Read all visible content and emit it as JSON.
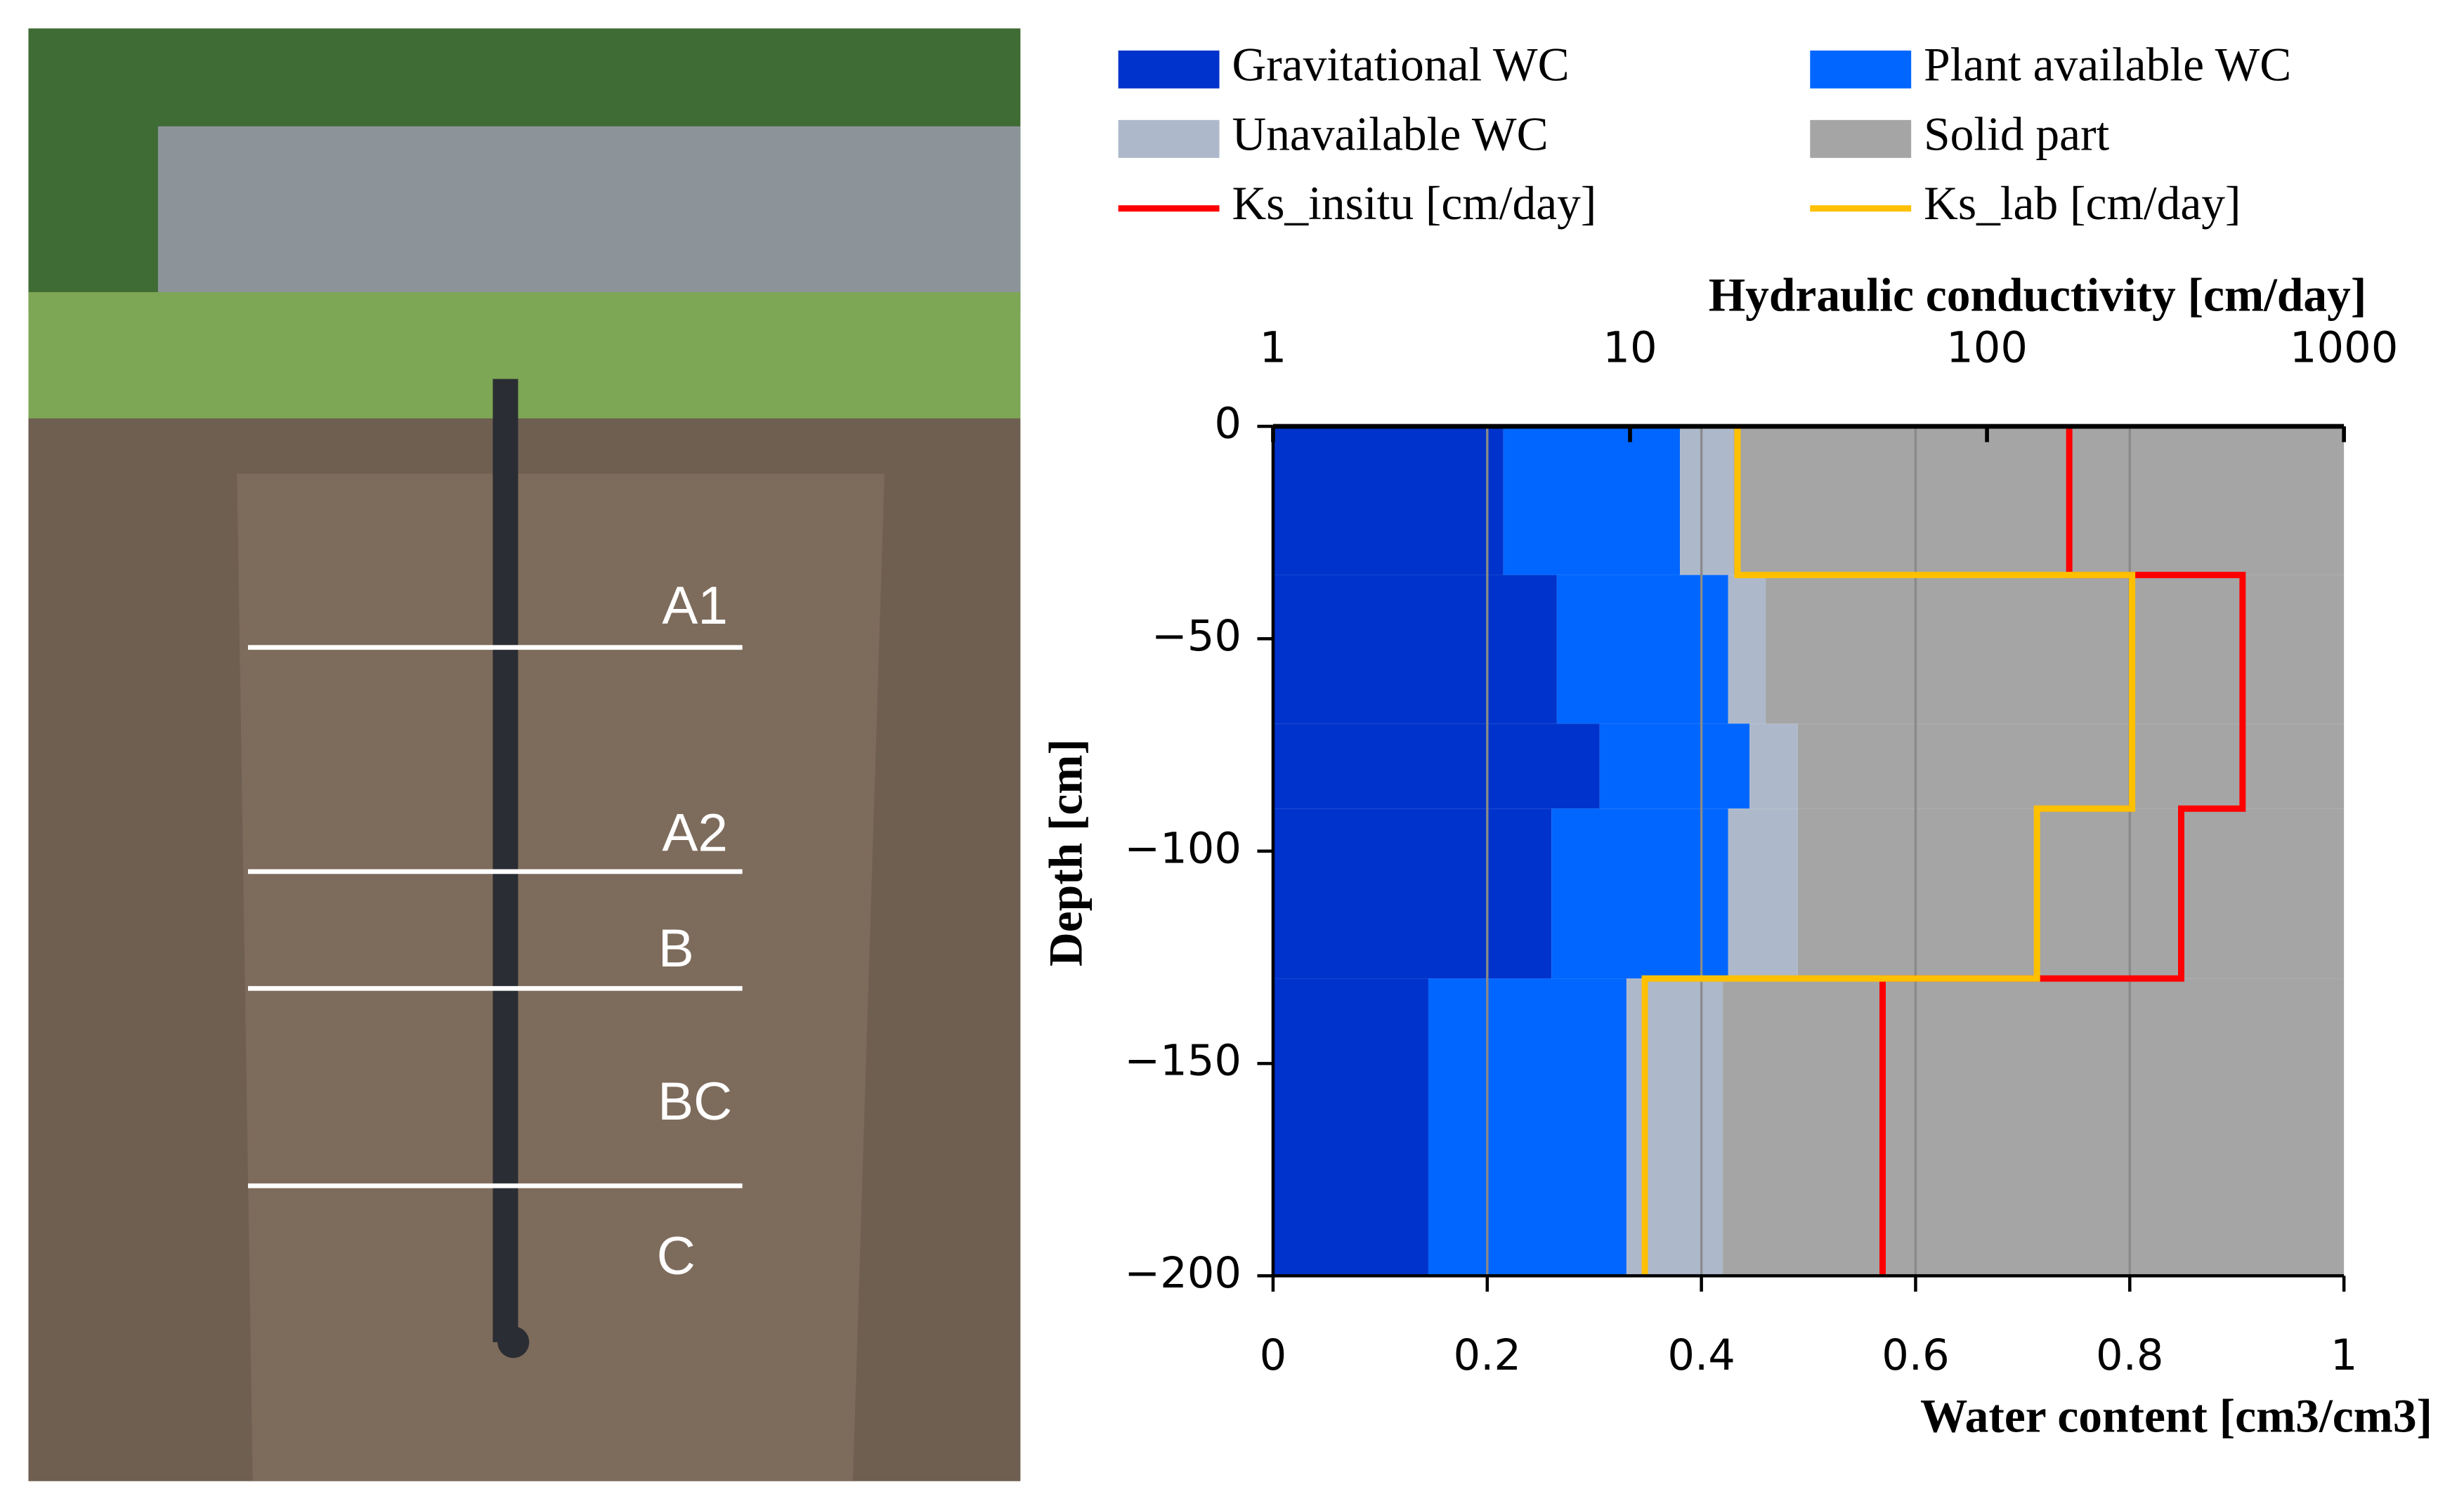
{
  "photo": {
    "horizon_labels": [
      "A1",
      "A2",
      "B",
      "BC",
      "C"
    ]
  },
  "chart_data": {
    "type": "bar",
    "xlabel": "Water content [cm3/cm3]",
    "x2label": "Hydraulic conductivity [cm/day]",
    "ylabel": "Depth [cm]",
    "depth_bins": [
      0,
      -35,
      -70,
      -90,
      -130,
      -200
    ],
    "series": [
      {
        "name": "Gravitational WC",
        "color": "#0033cc",
        "values": [
          0.215,
          0.265,
          0.305,
          0.26,
          0.145
        ]
      },
      {
        "name": "Plant available WC",
        "color": "#0066ff",
        "values": [
          0.165,
          0.16,
          0.14,
          0.165,
          0.185
        ]
      },
      {
        "name": "Unavailable WC",
        "color": "#adb9ca",
        "values": [
          0.05,
          0.035,
          0.045,
          0.065,
          0.09
        ]
      },
      {
        "name": "Solid part",
        "color": "#a5a5a5",
        "values": [
          0.57,
          0.54,
          0.51,
          0.51,
          0.58
        ]
      }
    ],
    "line_series": [
      {
        "name": "Ks_insitu [cm/day]",
        "color": "#ff0000",
        "axis": "x2",
        "values": [
          170,
          520,
          520,
          350,
          51
        ]
      },
      {
        "name": "Ks_lab [cm/day]",
        "color": "#ffc000",
        "axis": "x2",
        "values": [
          20,
          255,
          255,
          138,
          11
        ]
      }
    ],
    "xlim": [
      0,
      1
    ],
    "xticks": [
      0,
      0.2,
      0.4,
      0.6,
      0.8,
      1
    ],
    "x2lim": [
      1,
      1000
    ],
    "x2ticks": [
      1,
      10,
      100,
      1000
    ],
    "x2log": true,
    "ylim": [
      -200,
      0
    ],
    "yticks": [
      0,
      {
        "value": -50,
        "label": "−50"
      },
      {
        "value": -100,
        "label": "−100"
      },
      {
        "value": -150,
        "label": "−150"
      },
      {
        "value": -200,
        "label": "−200"
      }
    ],
    "grid": true
  }
}
